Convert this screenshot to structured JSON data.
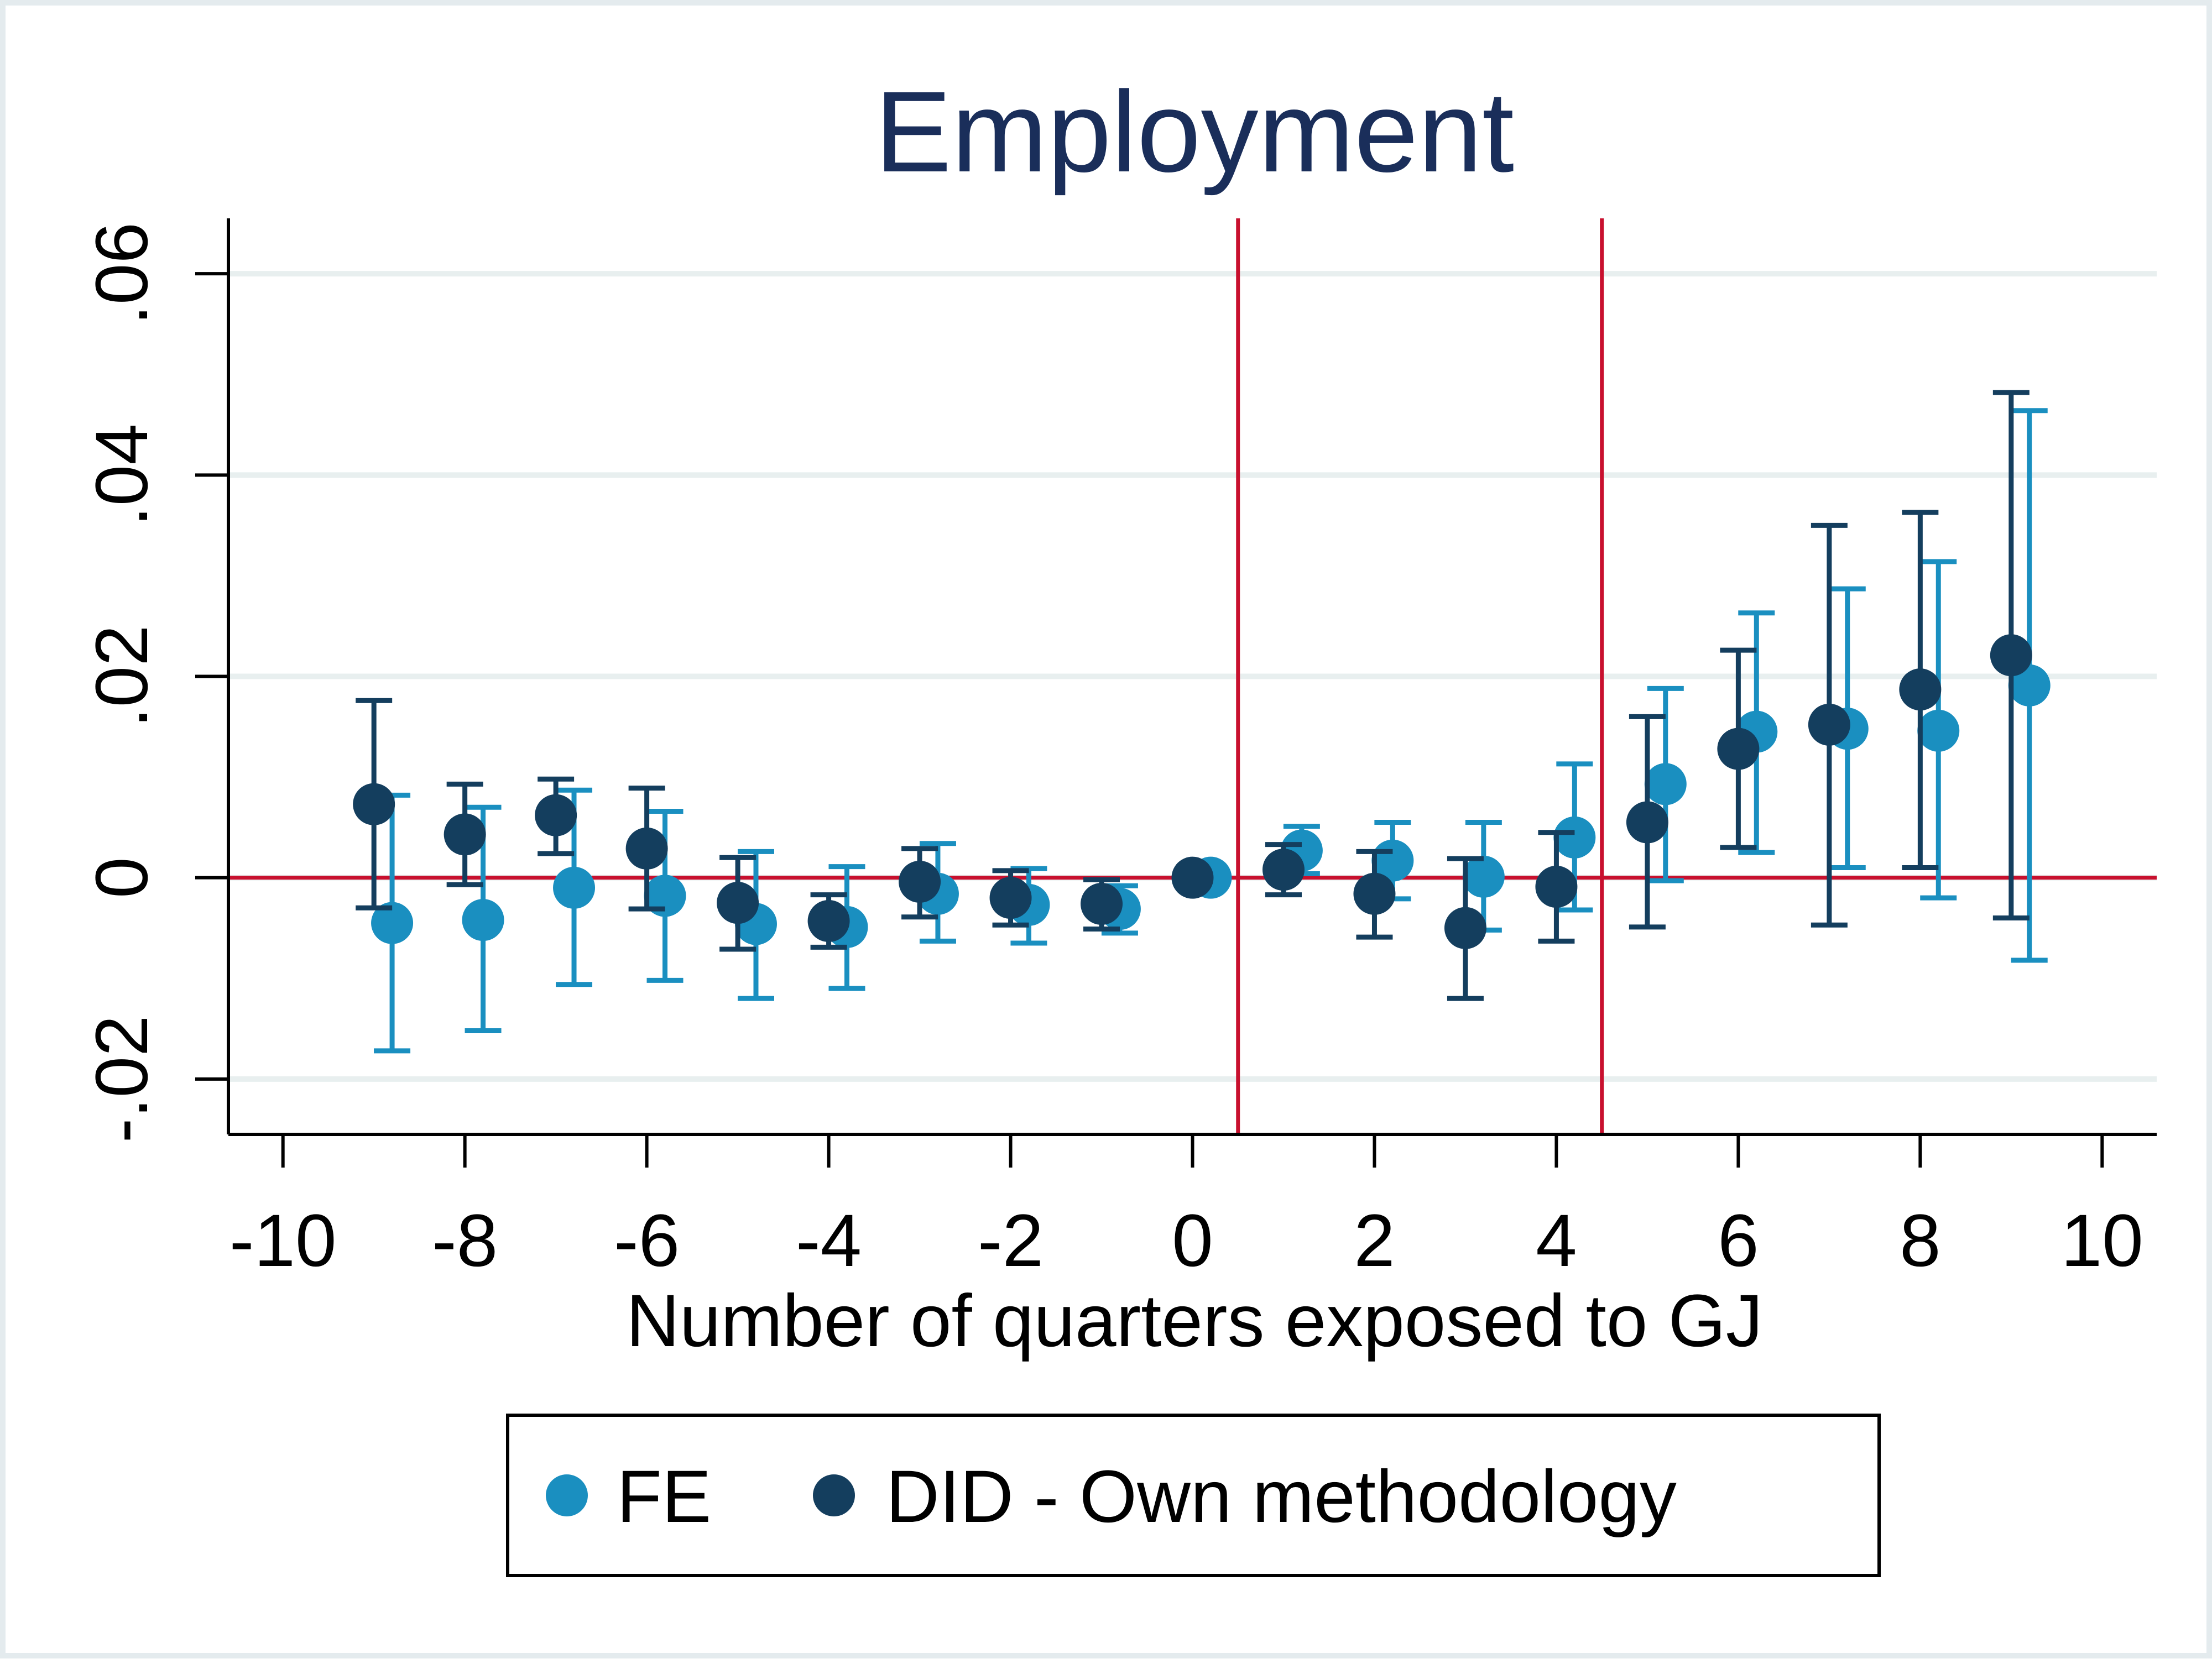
{
  "chart_data": {
    "type": "scatter",
    "title": "Employment",
    "xlabel": "Number of quarters exposed to GJ",
    "ylabel": "",
    "xlim": [
      -10.6,
      10.6
    ],
    "ylim": [
      -0.0255,
      0.0655
    ],
    "x_ticks": [
      -10,
      -8,
      -6,
      -4,
      -2,
      0,
      2,
      4,
      6,
      8,
      10
    ],
    "x_tick_labels": [
      "-10",
      "-8",
      "-6",
      "-4",
      "-2",
      "0",
      "2",
      "4",
      "6",
      "8",
      "10"
    ],
    "y_ticks": [
      -0.02,
      0,
      0.02,
      0.04,
      0.06
    ],
    "y_tick_labels": [
      "-.02",
      "0",
      ".02",
      ".04",
      ".06"
    ],
    "grid": true,
    "zero_line": 0,
    "vertical_lines": [
      0.5,
      4.5
    ],
    "legend_position": "bottom",
    "series": [
      {
        "name": "FE",
        "color": "#1a8fc0",
        "offset": 0.2,
        "points": [
          {
            "x": -9,
            "y": -0.0045,
            "lo": -0.0172,
            "hi": 0.0082
          },
          {
            "x": -8,
            "y": -0.0042,
            "lo": -0.0152,
            "hi": 0.007
          },
          {
            "x": -7,
            "y": -0.001,
            "lo": -0.0106,
            "hi": 0.0087
          },
          {
            "x": -6,
            "y": -0.0018,
            "lo": -0.0102,
            "hi": 0.0066
          },
          {
            "x": -5,
            "y": -0.0046,
            "lo": -0.012,
            "hi": 0.0026
          },
          {
            "x": -4,
            "y": -0.0049,
            "lo": -0.011,
            "hi": 0.0011
          },
          {
            "x": -3,
            "y": -0.0016,
            "lo": -0.0063,
            "hi": 0.0034
          },
          {
            "x": -2,
            "y": -0.0027,
            "lo": -0.0065,
            "hi": 0.0009
          },
          {
            "x": -1,
            "y": -0.0031,
            "lo": -0.0055,
            "hi": -0.0008
          },
          {
            "x": 0,
            "y": 0.0,
            "lo": 0.0,
            "hi": 0.0
          },
          {
            "x": 1,
            "y": 0.0027,
            "lo": 0.0004,
            "hi": 0.0051
          },
          {
            "x": 2,
            "y": 0.0017,
            "lo": -0.0021,
            "hi": 0.0055
          },
          {
            "x": 3,
            "y": 0.0001,
            "lo": -0.0052,
            "hi": 0.0055
          },
          {
            "x": 4,
            "y": 0.004,
            "lo": -0.0032,
            "hi": 0.0113
          },
          {
            "x": 5,
            "y": 0.0093,
            "lo": -0.0003,
            "hi": 0.0188
          },
          {
            "x": 6,
            "y": 0.0145,
            "lo": 0.0025,
            "hi": 0.0263
          },
          {
            "x": 7,
            "y": 0.0148,
            "lo": 0.001,
            "hi": 0.0287
          },
          {
            "x": 8,
            "y": 0.0146,
            "lo": -0.002,
            "hi": 0.0314
          },
          {
            "x": 9,
            "y": 0.0191,
            "lo": -0.0082,
            "hi": 0.0464
          }
        ]
      },
      {
        "name": "DID - Own methodology",
        "color": "#143e5e",
        "offset": 0.0,
        "points": [
          {
            "x": -9,
            "y": 0.0073,
            "lo": -0.003,
            "hi": 0.0176
          },
          {
            "x": -8,
            "y": 0.0043,
            "lo": -0.0007,
            "hi": 0.0093
          },
          {
            "x": -7,
            "y": 0.0062,
            "lo": 0.0024,
            "hi": 0.0098
          },
          {
            "x": -6,
            "y": 0.0029,
            "lo": -0.0031,
            "hi": 0.0089
          },
          {
            "x": -5,
            "y": -0.0025,
            "lo": -0.0071,
            "hi": 0.002
          },
          {
            "x": -4,
            "y": -0.0043,
            "lo": -0.0069,
            "hi": -0.0017
          },
          {
            "x": -3,
            "y": -0.0004,
            "lo": -0.0039,
            "hi": 0.0029
          },
          {
            "x": -2,
            "y": -0.002,
            "lo": -0.0047,
            "hi": 0.0007
          },
          {
            "x": -1,
            "y": -0.0026,
            "lo": -0.0051,
            "hi": -0.0002
          },
          {
            "x": 0,
            "y": 0.0,
            "lo": 0.0,
            "hi": 0.0
          },
          {
            "x": 1,
            "y": 0.0008,
            "lo": -0.0017,
            "hi": 0.0033
          },
          {
            "x": 2,
            "y": -0.0016,
            "lo": -0.0059,
            "hi": 0.0026
          },
          {
            "x": 3,
            "y": -0.005,
            "lo": -0.012,
            "hi": 0.0019
          },
          {
            "x": 4,
            "y": -0.0009,
            "lo": -0.0063,
            "hi": 0.0045
          },
          {
            "x": 5,
            "y": 0.0055,
            "lo": -0.0049,
            "hi": 0.016
          },
          {
            "x": 6,
            "y": 0.0128,
            "lo": 0.003,
            "hi": 0.0226
          },
          {
            "x": 7,
            "y": 0.0152,
            "lo": -0.0047,
            "hi": 0.035
          },
          {
            "x": 8,
            "y": 0.0187,
            "lo": 0.001,
            "hi": 0.0363
          },
          {
            "x": 9,
            "y": 0.0221,
            "lo": -0.004,
            "hi": 0.0482
          }
        ]
      }
    ]
  },
  "colors": {
    "grid": "#e8efef",
    "reference_lines": "#c8102e",
    "axis": "#000000",
    "title": "#1a2e5a"
  }
}
